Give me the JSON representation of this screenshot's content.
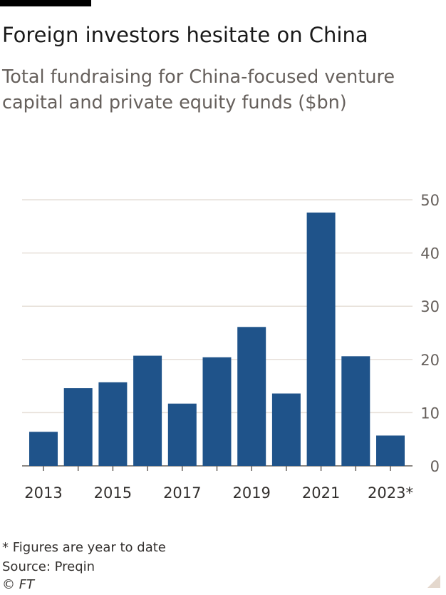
{
  "header": {
    "title": "Foreign investors hesitate on China",
    "subtitle": "Total fundraising for China-focused venture capital and private equity funds ($bn)"
  },
  "chart_data": {
    "type": "bar",
    "categories": [
      "2013",
      "2014",
      "2015",
      "2016",
      "2017",
      "2018",
      "2019",
      "2020",
      "2021",
      "2022",
      "2023*"
    ],
    "values": [
      6.4,
      14.6,
      15.7,
      20.7,
      11.7,
      20.4,
      26.1,
      13.6,
      47.6,
      20.6,
      5.7
    ],
    "x_tick_labels": [
      "2013",
      "2015",
      "2017",
      "2019",
      "2021",
      "2023*"
    ],
    "y_ticks": [
      0,
      10,
      20,
      30,
      40,
      50
    ],
    "ylim": [
      0,
      50
    ],
    "grid": true,
    "bar_color": "#1f538a",
    "axis_side": "right"
  },
  "footer": {
    "note": "* Figures are year to date",
    "source": "Source: Preqin",
    "credit": "© FT"
  }
}
